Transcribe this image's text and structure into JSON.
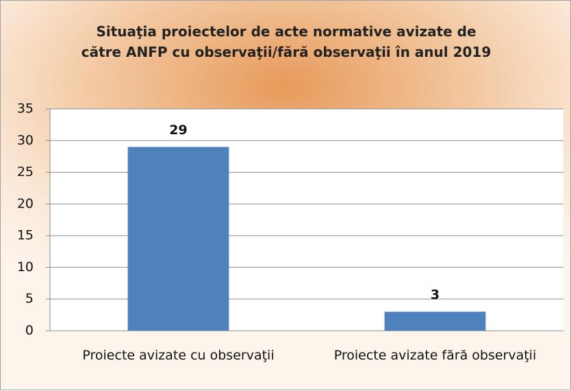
{
  "chart_data": {
    "type": "bar",
    "title": "Situaţia proiectelor de acte normative avizate de către ANFP cu observaţii/fără observaţii în anul 2019",
    "categories": [
      "Proiecte avizate cu observaţii",
      "Proiecte avizate fără observaţii"
    ],
    "values": [
      29,
      3
    ],
    "color": "#4f81bd",
    "ylim": [
      0,
      35
    ],
    "yticks": [
      0,
      5,
      10,
      15,
      20,
      25,
      30,
      35
    ],
    "grid": true
  }
}
